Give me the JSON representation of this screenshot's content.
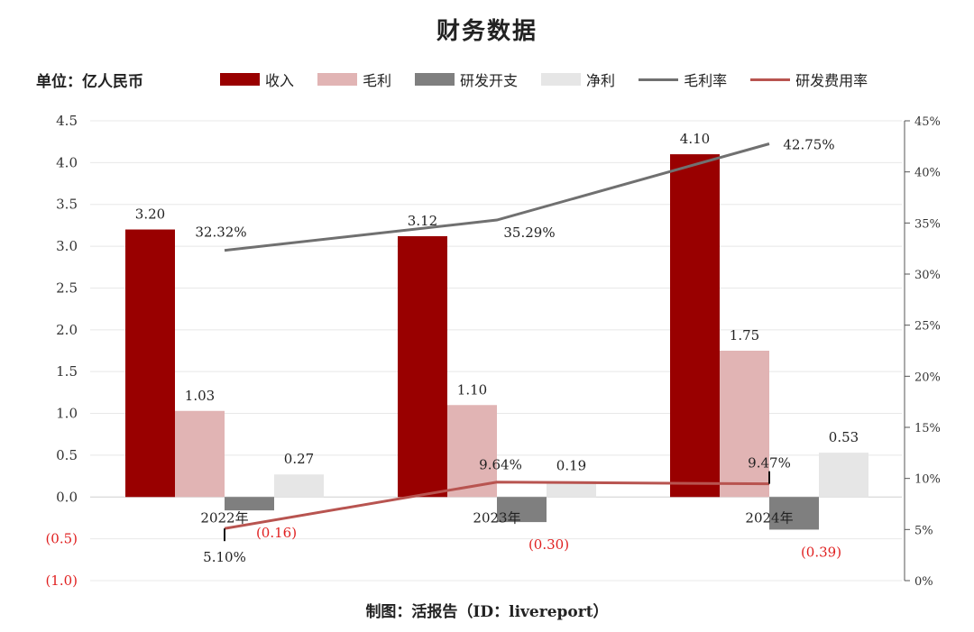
{
  "title": "财务数据",
  "unit_label": "单位：亿人民币",
  "footer": "制图：活报告（ID：livereport）",
  "legend": [
    {
      "label": "收入",
      "kind": "box",
      "color": "#990000"
    },
    {
      "label": "毛利",
      "kind": "box",
      "color": "#e1b4b4"
    },
    {
      "label": "研发开支",
      "kind": "box",
      "color": "#7f7f7f"
    },
    {
      "label": "净利",
      "kind": "box",
      "color": "#e6e6e6"
    },
    {
      "label": "毛利率",
      "kind": "line",
      "color": "#707070"
    },
    {
      "label": "研发费用率",
      "kind": "line",
      "color": "#b85450"
    }
  ],
  "chart_data": {
    "type": "bar",
    "categories": [
      "2022年",
      "2023年",
      "2024年"
    ],
    "series": [
      {
        "name": "收入",
        "type": "bar",
        "color": "#990000",
        "values": [
          3.2,
          3.12,
          4.1
        ],
        "labels": [
          "3.20",
          "3.12",
          "4.10"
        ]
      },
      {
        "name": "毛利",
        "type": "bar",
        "color": "#e1b4b4",
        "values": [
          1.03,
          1.1,
          1.75
        ],
        "labels": [
          "1.03",
          "1.10",
          "1.75"
        ]
      },
      {
        "name": "研发开支",
        "type": "bar",
        "color": "#7f7f7f",
        "values": [
          -0.16,
          -0.3,
          -0.39
        ],
        "labels": [
          "(0.16)",
          "(0.30)",
          "(0.39)"
        ]
      },
      {
        "name": "净利",
        "type": "bar",
        "color": "#e6e6e6",
        "values": [
          0.27,
          0.19,
          0.53
        ],
        "labels": [
          "0.27",
          "0.19",
          "0.53"
        ]
      },
      {
        "name": "毛利率",
        "type": "line",
        "axis": "right",
        "color": "#707070",
        "values": [
          32.32,
          35.29,
          42.75
        ],
        "labels": [
          "32.32%",
          "35.29%",
          "42.75%"
        ]
      },
      {
        "name": "研发费用率",
        "type": "line",
        "axis": "right",
        "color": "#b85450",
        "values": [
          5.1,
          9.64,
          9.47
        ],
        "labels": [
          "5.10%",
          "9.64%",
          "9.47%"
        ]
      }
    ],
    "ylim": [
      -1.0,
      4.5
    ],
    "y_ticks": [
      "4.5",
      "4.0",
      "3.5",
      "3.0",
      "2.5",
      "2.0",
      "1.5",
      "1.0",
      "0.5",
      "0.0",
      "(0.5)",
      "(1.0)"
    ],
    "y_tick_values": [
      4.5,
      4.0,
      3.5,
      3.0,
      2.5,
      2.0,
      1.5,
      1.0,
      0.5,
      0.0,
      -0.5,
      -1.0
    ],
    "y2lim": [
      0,
      45
    ],
    "y2_ticks": [
      "45%",
      "40%",
      "35%",
      "30%",
      "25%",
      "20%",
      "15%",
      "10%",
      "5%",
      "0%"
    ],
    "y2_tick_values": [
      45,
      40,
      35,
      30,
      25,
      20,
      15,
      10,
      5,
      0
    ],
    "grid": true,
    "legend_position": "top"
  }
}
